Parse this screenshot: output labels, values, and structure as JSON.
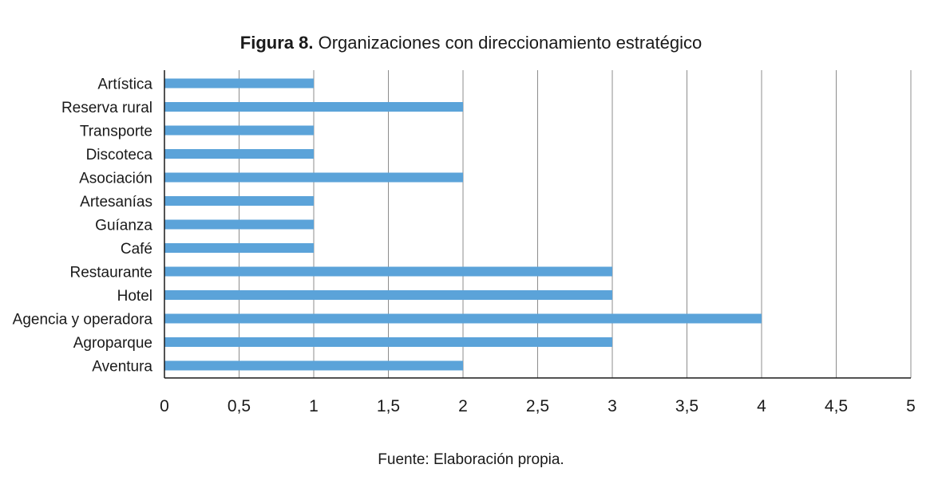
{
  "header": {
    "figure_label": "Figura 8.",
    "title": "Organizaciones con direccionamiento estratégico"
  },
  "footer": {
    "source": "Fuente: Elaboración propia."
  },
  "chart_data": {
    "type": "bar",
    "orientation": "horizontal",
    "title": "Figura 8. Organizaciones con direccionamiento estratégico",
    "xlabel": "",
    "ylabel": "",
    "categories": [
      "Artística",
      "Reserva rural",
      "Transporte",
      "Discoteca",
      "Asociación",
      "Artesanías",
      "Guíanza",
      "Café",
      "Restaurante",
      "Hotel",
      "Agencia y operadora",
      "Agroparque",
      "Aventura"
    ],
    "values": [
      1,
      2,
      1,
      1,
      2,
      1,
      1,
      1,
      3,
      3,
      4,
      3,
      2
    ],
    "xlim": [
      0,
      5
    ],
    "xticks": [
      "0",
      "0,5",
      "1",
      "1,5",
      "2",
      "2,5",
      "3",
      "3,5",
      "4",
      "4,5",
      "5"
    ],
    "grid": "vertical",
    "legend": "none",
    "bar_color": "#5ba3d9",
    "grid_color": "#8c8c8c",
    "axis_color": "#1a1a1a"
  }
}
